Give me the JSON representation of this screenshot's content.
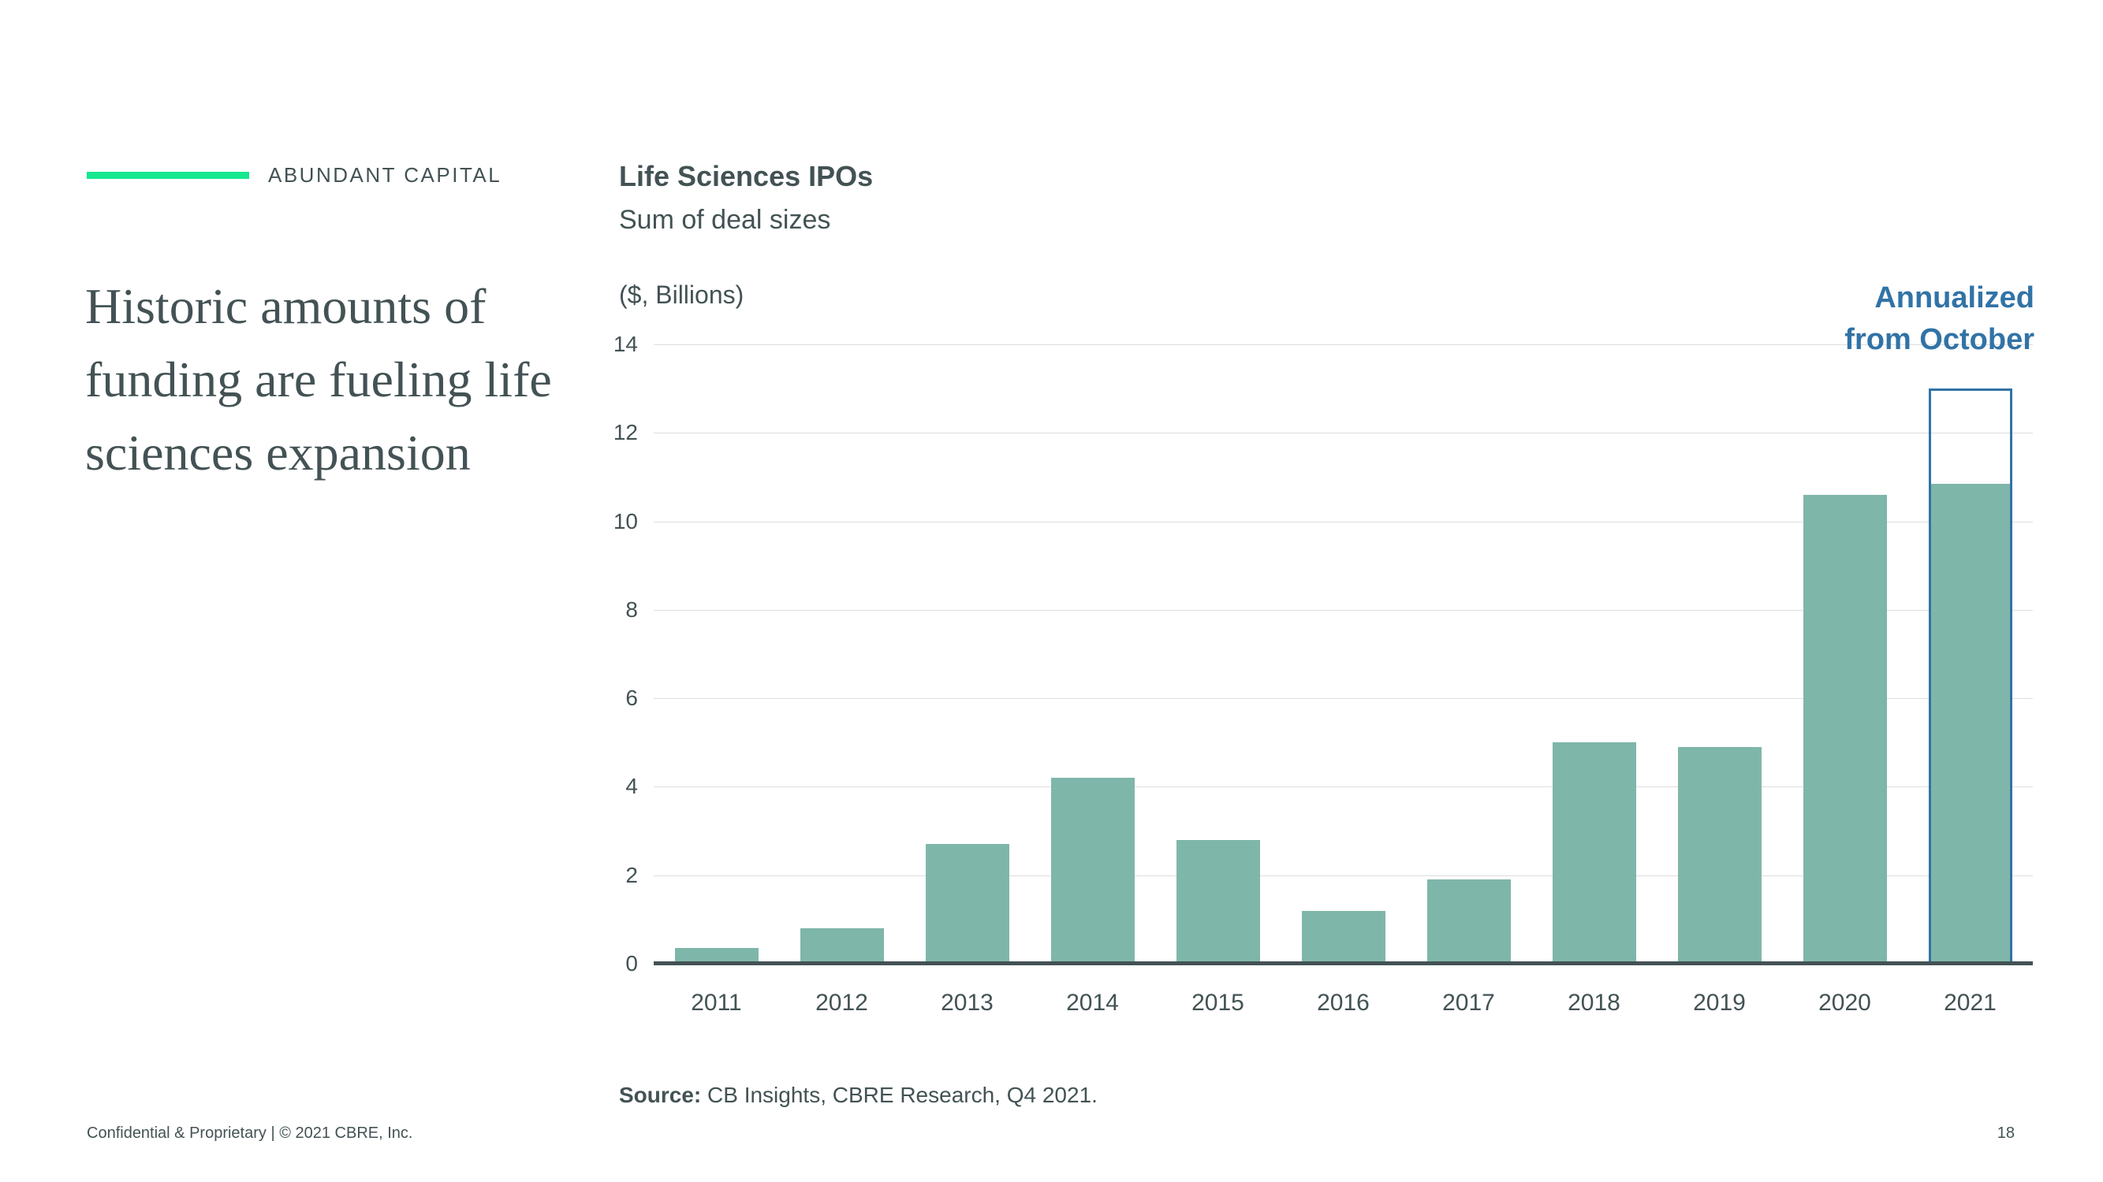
{
  "kicker": {
    "label": "ABUNDANT CAPITAL",
    "accent_color": "#17E88F"
  },
  "left_title_lines": [
    "Historic amounts of",
    "funding are fueling life",
    "sciences expansion"
  ],
  "annotation": {
    "lines": [
      "Annualized",
      "from October"
    ],
    "color": "#3173A6"
  },
  "chart_data": {
    "type": "bar",
    "title": "Life Sciences IPOs",
    "subtitle": "Sum of deal sizes",
    "ylabel": "($, Billions)",
    "xlabel": "",
    "categories": [
      "2011",
      "2012",
      "2013",
      "2014",
      "2015",
      "2016",
      "2017",
      "2018",
      "2019",
      "2020",
      "2021"
    ],
    "values": [
      0.35,
      0.8,
      2.7,
      4.2,
      2.8,
      1.2,
      1.9,
      5.0,
      4.9,
      10.6,
      10.85
    ],
    "ylim": [
      0,
      14
    ],
    "yticks": [
      0,
      2,
      4,
      6,
      8,
      10,
      12,
      14
    ],
    "grid": "horizontal-light",
    "legend": "none",
    "bar_color": "#7FB6AA",
    "axis_color": "#435254",
    "gridline_color": "#DDDDDD",
    "annualized": {
      "category": "2021",
      "total": 13.0,
      "note": "Annualized from October",
      "outline_color": "#3173A6"
    }
  },
  "source": {
    "label": "Source:",
    "text": "CB Insights, CBRE Research, Q4 2021."
  },
  "footer": {
    "left": "Confidential & Proprietary | © 2021 CBRE, Inc.",
    "page": "18"
  }
}
